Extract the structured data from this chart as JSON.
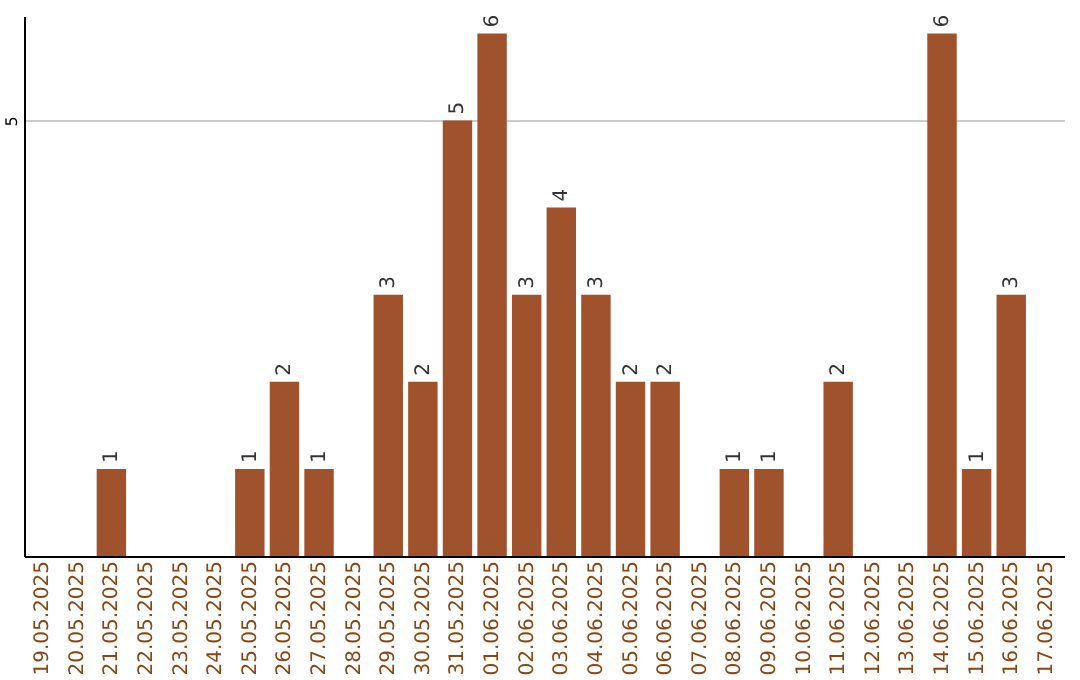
{
  "chart_data": {
    "type": "bar",
    "categories": [
      "19.05.2025",
      "20.05.2025",
      "21.05.2025",
      "22.05.2025",
      "23.05.2025",
      "24.05.2025",
      "25.05.2025",
      "26.05.2025",
      "27.05.2025",
      "28.05.2025",
      "29.05.2025",
      "30.05.2025",
      "31.05.2025",
      "01.06.2025",
      "02.06.2025",
      "03.06.2025",
      "04.06.2025",
      "05.06.2025",
      "06.06.2025",
      "07.06.2025",
      "08.06.2025",
      "09.06.2025",
      "10.06.2025",
      "11.06.2025",
      "12.06.2025",
      "13.06.2025",
      "14.06.2025",
      "15.06.2025",
      "16.06.2025",
      "17.06.2025"
    ],
    "values": [
      0,
      0,
      1,
      0,
      0,
      0,
      1,
      2,
      1,
      0,
      3,
      2,
      5,
      6,
      3,
      4,
      3,
      2,
      2,
      0,
      1,
      1,
      0,
      2,
      0,
      0,
      6,
      1,
      3,
      0
    ],
    "value_labels": [
      null,
      null,
      "1",
      null,
      null,
      null,
      "1",
      "2",
      "1",
      null,
      "3",
      "2",
      "5",
      "6",
      "3",
      "4",
      "3",
      "2",
      "2",
      null,
      "1",
      "1",
      null,
      "2",
      null,
      null,
      "6",
      "1",
      "3",
      null
    ],
    "color": "#a0522d",
    "ylim": [
      0,
      6.2
    ],
    "yticks": [
      5
    ],
    "grid": "y"
  }
}
